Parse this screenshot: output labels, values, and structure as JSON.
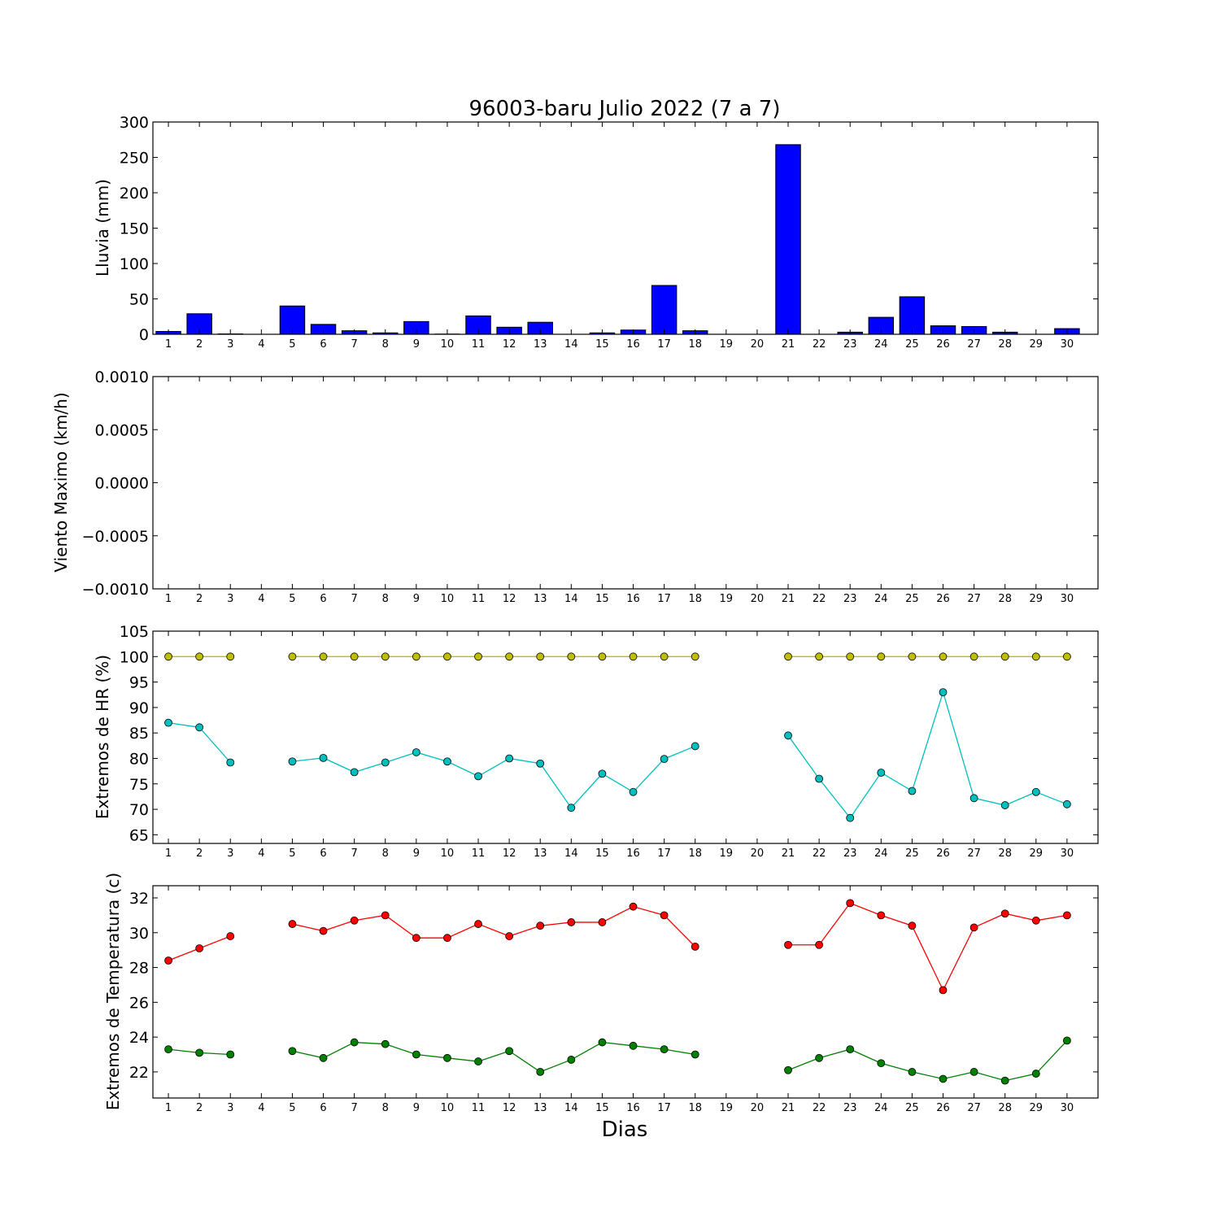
{
  "chart_data": [
    {
      "type": "bar",
      "title": "96003-baru Julio 2022  (7 a 7)",
      "ylabel": "Lluvia (mm)",
      "xlabel": "",
      "ylim": [
        0,
        300
      ],
      "yticks": [
        0,
        50,
        100,
        150,
        200,
        250,
        300
      ],
      "ytick_labels": [
        "0",
        "50",
        "100",
        "150",
        "200",
        "250",
        "300"
      ],
      "categories": [
        "1",
        "2",
        "3",
        "4",
        "5",
        "6",
        "7",
        "8",
        "9",
        "10",
        "11",
        "12",
        "13",
        "14",
        "15",
        "16",
        "17",
        "18",
        "19",
        "20",
        "21",
        "22",
        "23",
        "24",
        "25",
        "26",
        "27",
        "28",
        "29",
        "30"
      ],
      "values": [
        4,
        29,
        0.5,
        0,
        40,
        14,
        5,
        2,
        18,
        0.3,
        26,
        10,
        17,
        0,
        2,
        6,
        69,
        5,
        0,
        0,
        268,
        0,
        3,
        24,
        53,
        12,
        11,
        3,
        0,
        8
      ],
      "color": "#0000ff"
    },
    {
      "type": "line",
      "ylabel": "Viento Maximo (km/h)",
      "xlabel": "",
      "ylim": [
        -0.001,
        0.001
      ],
      "yticks": [
        -0.001,
        -0.0005,
        0,
        0.0005,
        0.001
      ],
      "ytick_labels": [
        "−0.0010",
        "−0.0005",
        "0.0000",
        "0.0005",
        "0.0010"
      ],
      "categories": [
        "1",
        "2",
        "3",
        "4",
        "5",
        "6",
        "7",
        "8",
        "9",
        "10",
        "11",
        "12",
        "13",
        "14",
        "15",
        "16",
        "17",
        "18",
        "19",
        "20",
        "21",
        "22",
        "23",
        "24",
        "25",
        "26",
        "27",
        "28",
        "29",
        "30"
      ],
      "series": []
    },
    {
      "type": "line",
      "ylabel": "Extremos de HR (%)",
      "xlabel": "",
      "ylim": [
        63.3,
        105
      ],
      "yticks": [
        65,
        70,
        75,
        80,
        85,
        90,
        95,
        100,
        105
      ],
      "ytick_labels": [
        "65",
        "70",
        "75",
        "80",
        "85",
        "90",
        "95",
        "100",
        "105"
      ],
      "categories": [
        "1",
        "2",
        "3",
        "4",
        "5",
        "6",
        "7",
        "8",
        "9",
        "10",
        "11",
        "12",
        "13",
        "14",
        "15",
        "16",
        "17",
        "18",
        "19",
        "20",
        "21",
        "22",
        "23",
        "24",
        "25",
        "26",
        "27",
        "28",
        "29",
        "30"
      ],
      "series": [
        {
          "color": "#bfbf00",
          "values": [
            100,
            100,
            100,
            null,
            100,
            100,
            100,
            100,
            100,
            100,
            100,
            100,
            100,
            100,
            100,
            100,
            100,
            100,
            null,
            null,
            100,
            100,
            100,
            100,
            100,
            100,
            100,
            100,
            100,
            100
          ]
        },
        {
          "color": "#00bfbf",
          "values": [
            87,
            86.1,
            79.2,
            null,
            79.4,
            80.1,
            77.3,
            79.2,
            81.2,
            79.4,
            76.5,
            80,
            79,
            70.3,
            77,
            73.4,
            79.9,
            82.4,
            null,
            null,
            84.5,
            76,
            68.3,
            77.2,
            73.6,
            93,
            72.2,
            70.8,
            73.4,
            71
          ]
        }
      ]
    },
    {
      "type": "line",
      "ylabel": "Extremos de Temperatura (c)",
      "xlabel": "Dias",
      "ylim": [
        20.5,
        32.7
      ],
      "yticks": [
        22,
        24,
        26,
        28,
        30,
        32
      ],
      "ytick_labels": [
        "22",
        "24",
        "26",
        "28",
        "30",
        "32"
      ],
      "categories": [
        "1",
        "2",
        "3",
        "4",
        "5",
        "6",
        "7",
        "8",
        "9",
        "10",
        "11",
        "12",
        "13",
        "14",
        "15",
        "16",
        "17",
        "18",
        "19",
        "20",
        "21",
        "22",
        "23",
        "24",
        "25",
        "26",
        "27",
        "28",
        "29",
        "30"
      ],
      "series": [
        {
          "color": "#ff0000",
          "values": [
            28.4,
            29.1,
            29.8,
            null,
            30.5,
            30.1,
            30.7,
            31,
            29.7,
            29.7,
            30.5,
            29.8,
            30.4,
            30.6,
            30.6,
            31.5,
            31,
            29.2,
            null,
            null,
            29.3,
            29.3,
            31.7,
            31,
            30.4,
            26.7,
            30.3,
            31.1,
            30.7,
            31
          ]
        },
        {
          "color": "#008000",
          "values": [
            23.3,
            23.1,
            23,
            null,
            23.2,
            22.8,
            23.7,
            23.6,
            23,
            22.8,
            22.6,
            23.2,
            22,
            22.7,
            23.7,
            23.5,
            23.3,
            23,
            null,
            null,
            22.1,
            22.8,
            23.3,
            22.5,
            22,
            21.6,
            22,
            21.5,
            21.9,
            23.8
          ]
        }
      ]
    }
  ]
}
